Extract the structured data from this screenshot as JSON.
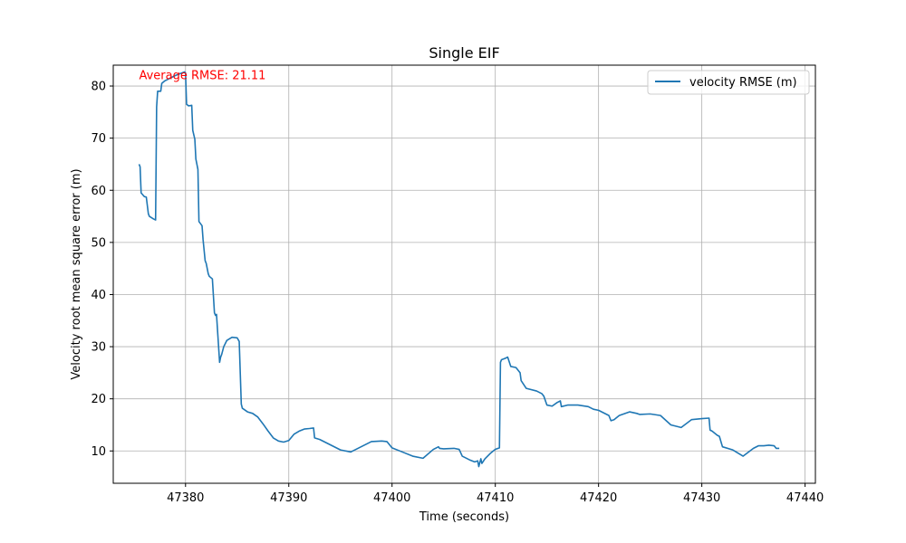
{
  "chart_data": {
    "type": "line",
    "title": "Single EIF",
    "xlabel": "Time (seconds)",
    "ylabel": "Velocity root mean square error (m)",
    "xlim": [
      47373,
      47441
    ],
    "ylim": [
      3.8,
      84.0
    ],
    "xticks": [
      47380,
      47390,
      47400,
      47410,
      47420,
      47430,
      47440
    ],
    "yticks": [
      10,
      20,
      30,
      40,
      50,
      60,
      70,
      80
    ],
    "xtick_labels": [
      "47380",
      "47390",
      "47400",
      "47410",
      "47420",
      "47430",
      "47440"
    ],
    "ytick_labels": [
      "10",
      "20",
      "30",
      "40",
      "50",
      "60",
      "70",
      "80"
    ],
    "grid": true,
    "legend_position": "upper right",
    "annotation": {
      "text": "Average RMSE: 21.11",
      "color": "#ff0000",
      "x": 47375.5,
      "y": 82.2
    },
    "series": [
      {
        "name": "velocity RMSE (m)",
        "color": "#1f77b4",
        "x": [
          47375.5,
          47375.6,
          47375.7,
          47376.0,
          47376.2,
          47376.4,
          47376.5,
          47376.9,
          47377.1,
          47377.2,
          47377.3,
          47377.6,
          47377.7,
          47378.0,
          47379.0,
          47379.9,
          47380.0,
          47380.1,
          47380.3,
          47380.6,
          47380.7,
          47380.9,
          47381.0,
          47381.2,
          47381.3,
          47381.6,
          47381.7,
          47381.9,
          47382.0,
          47382.2,
          47382.3,
          47382.6,
          47382.8,
          47382.9,
          47383.0,
          47383.3,
          47383.4,
          47383.5,
          47383.7,
          47384.0,
          47384.5,
          47385.0,
          47385.2,
          47385.4,
          47385.5,
          47386.0,
          47386.5,
          47387.0,
          47387.5,
          47388.0,
          47388.5,
          47389.0,
          47389.5,
          47390.0,
          47390.5,
          47391.0,
          47391.5,
          47392.0,
          47392.4,
          47392.5,
          47393.0,
          47394.0,
          47395.0,
          47396.0,
          47397.0,
          47398.0,
          47399.0,
          47399.5,
          47400.0,
          47401.0,
          47402.0,
          47403.0,
          47404.0,
          47404.5,
          47404.6,
          47405.0,
          47406.0,
          47406.5,
          47406.8,
          47407.5,
          47408.0,
          47408.3,
          47408.4,
          47408.6,
          47408.7,
          47409.0,
          47409.5,
          47410.0,
          47410.4,
          47410.5,
          47410.6,
          47411.0,
          47411.2,
          47411.5,
          47412.0,
          47412.4,
          47412.5,
          47413.0,
          47414.0,
          47414.5,
          47414.7,
          47415.0,
          47415.5,
          47416.0,
          47416.3,
          47416.4,
          47417.0,
          47418.0,
          47419.0,
          47419.5,
          47420.0,
          47420.5,
          47421.0,
          47421.2,
          47421.5,
          47422.0,
          47423.0,
          47423.7,
          47424.0,
          47425.0,
          47426.0,
          47427.0,
          47428.0,
          47429.0,
          47430.0,
          47430.7,
          47430.8,
          47431.0,
          47431.5,
          47431.7,
          47432.0,
          47433.0,
          47434.0,
          47435.0,
          47435.5,
          47436.0,
          47436.5,
          47437.0,
          47437.2,
          47437.5
        ],
        "values": [
          65.0,
          64.5,
          59.5,
          58.8,
          58.7,
          55.5,
          55.0,
          54.5,
          54.3,
          76.0,
          79.0,
          79.0,
          80.5,
          81.0,
          82.0,
          82.7,
          82.5,
          76.5,
          76.2,
          76.3,
          71.5,
          69.8,
          66.0,
          64.0,
          54.0,
          53.2,
          50.5,
          46.5,
          46.0,
          44.0,
          43.5,
          43.0,
          36.5,
          36.0,
          36.2,
          27.0,
          28.0,
          28.5,
          30.0,
          31.2,
          31.8,
          31.7,
          31.0,
          19.0,
          18.2,
          17.5,
          17.2,
          16.5,
          15.2,
          13.8,
          12.5,
          11.9,
          11.7,
          12.0,
          13.2,
          13.8,
          14.2,
          14.3,
          14.4,
          12.5,
          12.2,
          11.2,
          10.2,
          9.8,
          10.8,
          11.8,
          11.9,
          11.8,
          10.6,
          9.8,
          9.0,
          8.6,
          10.3,
          10.8,
          10.5,
          10.4,
          10.5,
          10.3,
          9.0,
          8.3,
          7.9,
          8.1,
          7.0,
          8.5,
          7.6,
          8.5,
          9.5,
          10.3,
          10.6,
          27.0,
          27.5,
          27.8,
          28.0,
          26.2,
          26.0,
          25.0,
          23.5,
          22.0,
          21.5,
          21.0,
          20.5,
          18.8,
          18.6,
          19.3,
          19.6,
          18.5,
          18.8,
          18.8,
          18.5,
          18.0,
          17.8,
          17.3,
          16.8,
          15.8,
          16.0,
          16.8,
          17.5,
          17.2,
          17.0,
          17.1,
          16.8,
          15.0,
          14.5,
          16.0,
          16.2,
          16.3,
          14.0,
          13.8,
          13.0,
          12.8,
          10.8,
          10.2,
          9.0,
          10.5,
          11.0,
          11.0,
          11.1,
          11.0,
          10.5,
          10.5
        ]
      }
    ]
  }
}
